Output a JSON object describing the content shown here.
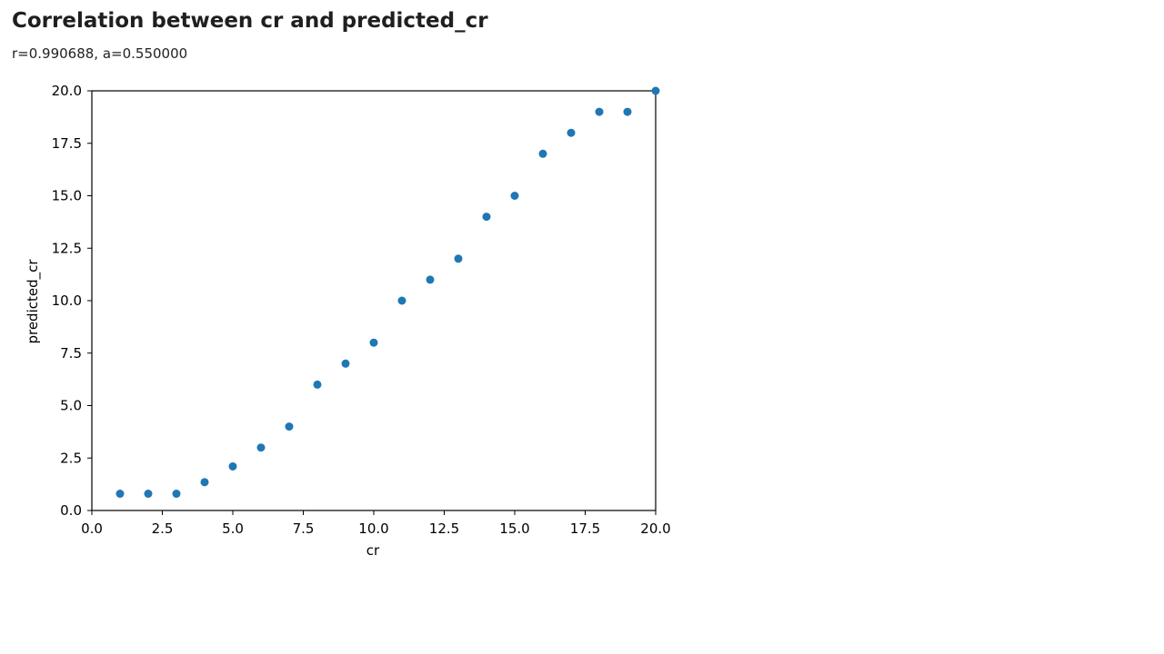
{
  "header": {
    "title": "Correlation between cr and predicted_cr",
    "subtitle": "r=0.990688, a=0.550000"
  },
  "chart_data": {
    "type": "scatter",
    "xlabel": "cr",
    "ylabel": "predicted_cr",
    "xlim": [
      0,
      20
    ],
    "ylim": [
      0,
      20
    ],
    "xticks": [
      "0.0",
      "2.5",
      "5.0",
      "7.5",
      "10.0",
      "12.5",
      "15.0",
      "17.5",
      "20.0"
    ],
    "yticks": [
      "0.0",
      "2.5",
      "5.0",
      "7.5",
      "10.0",
      "12.5",
      "15.0",
      "17.5",
      "20.0"
    ],
    "grid": false,
    "marker_color": "#1f77b4",
    "x": [
      1,
      2,
      3,
      4,
      5,
      6,
      7,
      8,
      9,
      10,
      11,
      12,
      13,
      14,
      15,
      16,
      17,
      18,
      19,
      20
    ],
    "y": [
      0.8,
      0.8,
      0.8,
      1.35,
      2.1,
      3,
      4,
      6,
      7,
      8,
      10,
      11,
      12,
      14,
      15,
      17,
      18,
      19,
      19,
      20
    ]
  }
}
